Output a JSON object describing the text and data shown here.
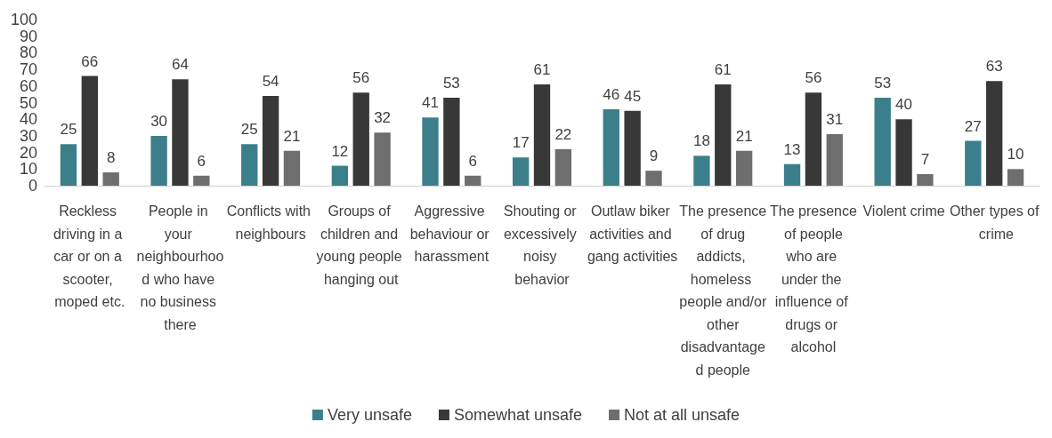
{
  "chart_data": {
    "type": "bar",
    "categories": [
      "Reckless driving in a car or on a scooter, moped etc.",
      "People in your neighbourhood who have no business there",
      "Conflicts with neighbours",
      "Groups of children and young people hanging out",
      "Aggressive behaviour or harassment",
      "Shouting or excessively noisy behavior",
      "Outlaw biker activities and gang activities",
      "The presence of drug addicts, homeless people and/or other disadvantaged people",
      "The presence of people who are under the influence of drugs or alcohol",
      "Violent crime",
      "Other types of crime"
    ],
    "series": [
      {
        "name": "Very unsafe",
        "color": "#3b7f8a",
        "values": [
          25,
          30,
          25,
          12,
          41,
          17,
          46,
          18,
          13,
          53,
          27
        ]
      },
      {
        "name": "Somewhat unsafe",
        "color": "#383838",
        "values": [
          66,
          64,
          54,
          56,
          53,
          61,
          45,
          61,
          56,
          40,
          63
        ]
      },
      {
        "name": "Not at all unsafe",
        "color": "#6e6e6e",
        "values": [
          8,
          6,
          21,
          32,
          6,
          22,
          9,
          21,
          31,
          7,
          10
        ]
      }
    ],
    "ylim": [
      0,
      100
    ],
    "yticks": [
      0,
      10,
      20,
      30,
      40,
      50,
      60,
      70,
      80,
      90,
      100
    ],
    "grid": false,
    "legend": "bottom",
    "data_labels": true
  }
}
